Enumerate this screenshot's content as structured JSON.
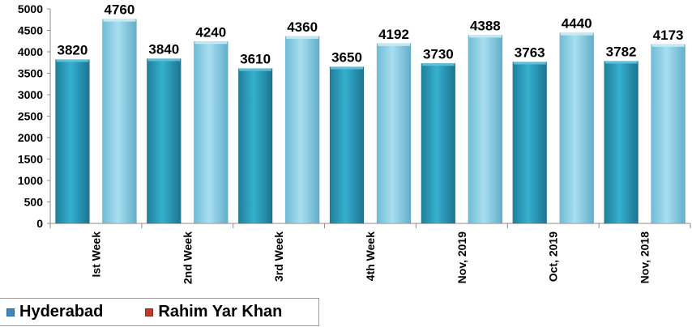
{
  "chart_data": {
    "type": "bar",
    "categories": [
      "Ist Week",
      "2nd Week",
      "3rd Week",
      "4th Week",
      "Nov, 2019",
      "Oct, 2019",
      "Nov, 2018"
    ],
    "series": [
      {
        "name": "Hyderabad",
        "values": [
          3820,
          3840,
          3610,
          3650,
          3730,
          3763,
          3782
        ]
      },
      {
        "name": "Rahim Yar Khan",
        "values": [
          4760,
          4240,
          4360,
          4192,
          4388,
          4440,
          4173
        ]
      }
    ],
    "ylim": [
      0,
      5000
    ],
    "yticks": [
      0,
      500,
      1000,
      1500,
      2000,
      2500,
      3000,
      3500,
      4000,
      4500,
      5000
    ],
    "grid": false,
    "legend_position": "bottom-left",
    "data_labels": true
  },
  "legend": {
    "items": [
      {
        "label": "Hyderabad",
        "color": "#3b88c4"
      },
      {
        "label": "Rahim Yar Khan",
        "color": "#c0392b"
      }
    ]
  },
  "colors": {
    "hyderabad_bar": "#2e9fbd",
    "rahim_yar_khan_bar": "#8fd0e6"
  }
}
